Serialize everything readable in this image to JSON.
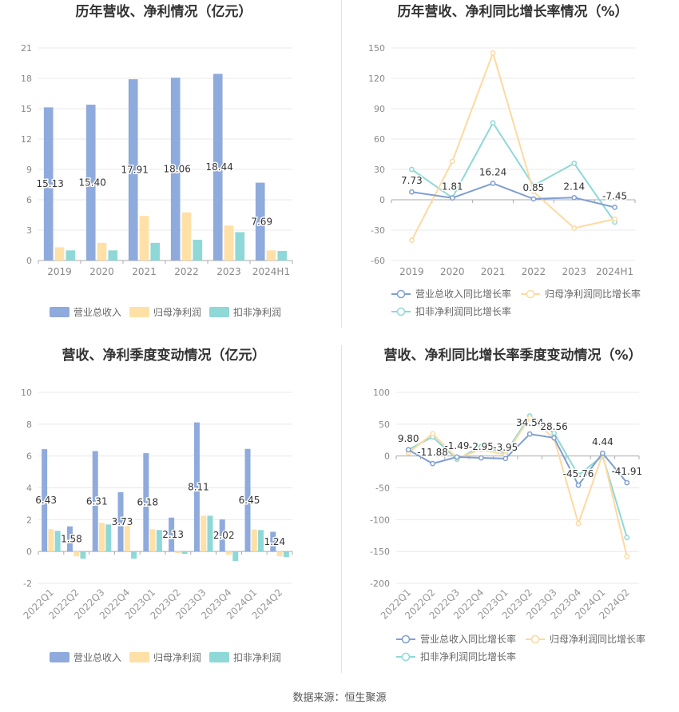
{
  "source_label": "数据来源：恒生聚源",
  "colors": {
    "revenue": "#8faadc",
    "parent_profit": "#ffe0a6",
    "deducted_profit": "#8ed8d8",
    "rev_line": "#7f9fd1",
    "parent_line": "#ffd9a0",
    "ded_line": "#8ed8d8",
    "grid": "#e8e8e8",
    "axis": "#aaaaaa",
    "text": "#666666",
    "title": "#333333"
  },
  "chart_data": [
    {
      "id": "annual_amount",
      "type": "bar",
      "title": "历年营收、净利情况（亿元）",
      "categories": [
        "2019",
        "2020",
        "2021",
        "2022",
        "2023",
        "2024H1"
      ],
      "ylim": [
        0,
        21
      ],
      "yticks": [
        0,
        3,
        6,
        9,
        12,
        15,
        18,
        21
      ],
      "ytick_labels": [
        "0",
        "3",
        "6",
        "9",
        "12",
        "15",
        "18",
        "21"
      ],
      "series": [
        {
          "name": "营业总收入",
          "values": [
            15.13,
            15.4,
            17.91,
            18.06,
            18.44,
            7.69
          ],
          "labels": [
            "15.13",
            "15.40",
            "17.91",
            "18.06",
            "18.44",
            "7.69"
          ]
        },
        {
          "name": "归母净利润",
          "values": [
            1.3,
            1.75,
            4.4,
            4.75,
            3.45,
            1.0
          ]
        },
        {
          "name": "扣非净利润",
          "values": [
            1.0,
            1.0,
            1.75,
            2.05,
            2.8,
            0.95
          ]
        }
      ],
      "legend": "bottom"
    },
    {
      "id": "annual_growth",
      "type": "line",
      "title": "历年营收、净利同比增长率情况（%）",
      "categories": [
        "2019",
        "2020",
        "2021",
        "2022",
        "2023",
        "2024H1"
      ],
      "ylim": [
        -60,
        150
      ],
      "yticks": [
        -60,
        -30,
        0,
        30,
        60,
        90,
        120,
        150
      ],
      "ytick_labels": [
        "-60",
        "-30",
        "0",
        "30",
        "60",
        "90",
        "120",
        "150"
      ],
      "series": [
        {
          "name": "营业总收入同比增长率",
          "values": [
            7.73,
            1.81,
            16.24,
            0.85,
            2.14,
            -7.45
          ],
          "labels": [
            "7.73",
            "1.81",
            "16.24",
            "0.85",
            "2.14",
            "-7.45"
          ]
        },
        {
          "name": "归母净利润同比增长率",
          "values": [
            -40,
            38,
            145,
            8,
            -28,
            -19
          ]
        },
        {
          "name": "扣非净利润同比增长率",
          "values": [
            30,
            2,
            76,
            14,
            36,
            -22
          ]
        }
      ],
      "legend": "bottom"
    },
    {
      "id": "quarterly_amount",
      "type": "bar",
      "title": "营收、净利季度变动情况（亿元）",
      "categories": [
        "2022Q1",
        "2022Q2",
        "2022Q3",
        "2022Q4",
        "2023Q1",
        "2023Q2",
        "2023Q3",
        "2023Q4",
        "2024Q1",
        "2024Q2"
      ],
      "ylim": [
        -2,
        10
      ],
      "yticks": [
        -2,
        0,
        2,
        4,
        6,
        8,
        10
      ],
      "ytick_labels": [
        "-2",
        "0",
        "2",
        "4",
        "6",
        "8",
        "10"
      ],
      "series": [
        {
          "name": "营业总收入",
          "values": [
            6.43,
            1.58,
            6.31,
            3.73,
            6.18,
            2.13,
            8.11,
            2.02,
            6.45,
            1.24
          ],
          "labels": [
            "6.43",
            "1.58",
            "6.31",
            "3.73",
            "6.18",
            "2.13",
            "8.11",
            "2.02",
            "6.45",
            "1.24"
          ]
        },
        {
          "name": "归母净利润",
          "values": [
            1.4,
            -0.3,
            1.8,
            1.6,
            1.4,
            -0.1,
            2.25,
            -0.2,
            1.38,
            -0.3
          ]
        },
        {
          "name": "扣非净利润",
          "values": [
            1.3,
            -0.45,
            1.7,
            -0.45,
            1.35,
            -0.15,
            2.25,
            -0.6,
            1.35,
            -0.35
          ]
        }
      ],
      "legend": "bottom"
    },
    {
      "id": "quarterly_growth",
      "type": "line",
      "title": "营收、净利同比增长率季度变动情况（%）",
      "categories": [
        "2022Q1",
        "2022Q2",
        "2022Q3",
        "2022Q4",
        "2023Q1",
        "2023Q2",
        "2023Q3",
        "2023Q4",
        "2024Q1",
        "2024Q2"
      ],
      "ylim": [
        -200,
        100
      ],
      "yticks": [
        -200,
        -150,
        -100,
        -50,
        0,
        50,
        100
      ],
      "ytick_labels": [
        "-200",
        "-150",
        "-100",
        "-50",
        "0",
        "50",
        "100"
      ],
      "series": [
        {
          "name": "营业总收入同比增长率",
          "values": [
            9.8,
            -11.88,
            -1.49,
            -2.95,
            -3.95,
            34.54,
            28.56,
            -45.76,
            4.44,
            -41.91
          ],
          "labels": [
            "9.80",
            "-11.88",
            "-1.49",
            "-2.95",
            "-3.95",
            "34.54",
            "28.56",
            "-45.76",
            "4.44",
            "-41.91"
          ]
        },
        {
          "name": "归母净利润同比增长率",
          "values": [
            5,
            35,
            -3,
            10,
            2,
            60,
            28,
            -106,
            3,
            -158
          ]
        },
        {
          "name": "扣非净利润同比增长率",
          "values": [
            10,
            30,
            -5,
            15,
            5,
            63,
            36,
            -30,
            0,
            -128
          ]
        }
      ],
      "legend": "bottom"
    }
  ]
}
